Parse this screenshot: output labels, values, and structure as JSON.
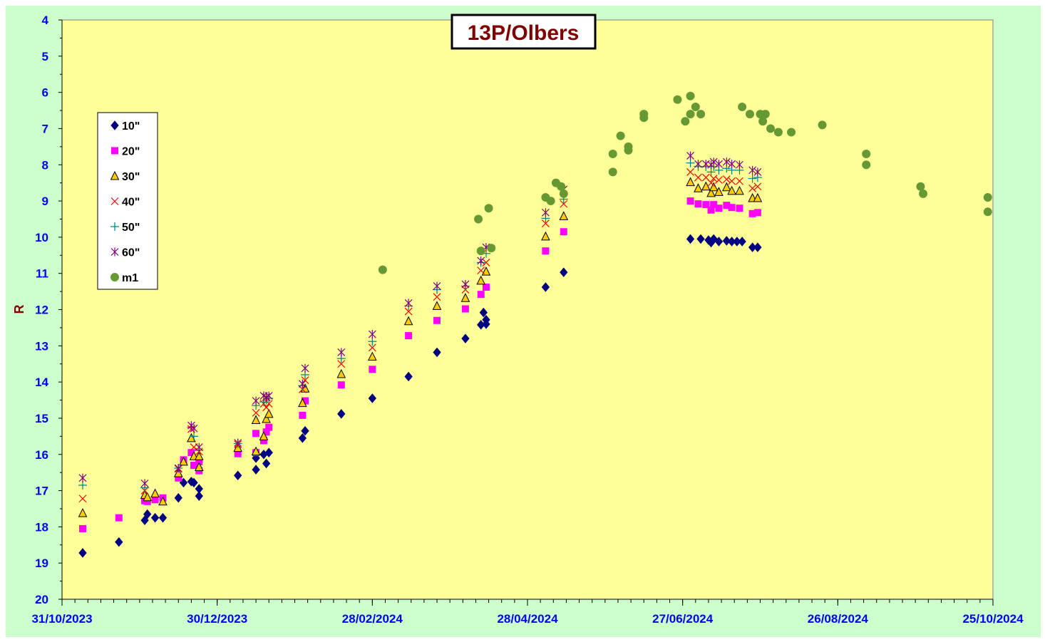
{
  "chart_data": {
    "type": "scatter",
    "title": "13P/Olbers",
    "ylabel": "R",
    "xlabel": "",
    "y_inverted": true,
    "ylim": [
      20,
      4
    ],
    "y_ticks": [
      "4",
      "5",
      "6",
      "7",
      "8",
      "9",
      "10",
      "11",
      "12",
      "13",
      "14",
      "15",
      "16",
      "17",
      "18",
      "19",
      "20"
    ],
    "x_ticks": [
      "31/10/2023",
      "30/12/2023",
      "28/02/2024",
      "28/04/2024",
      "27/06/2024",
      "26/08/2024",
      "25/10/2024"
    ],
    "xlim": [
      "31/10/2023",
      "25/10/2024"
    ],
    "grid": false,
    "legend_placement": "upper-left",
    "background_color": "#ffff99",
    "outer_color": "#ccffcc",
    "series": [
      {
        "name": "10\"",
        "marker": "diamond",
        "color": "#000080",
        "points": [
          [
            "2023-11-08",
            18.72
          ],
          [
            "2023-11-22",
            18.42
          ],
          [
            "2023-12-02",
            17.82
          ],
          [
            "2023-12-03",
            17.65
          ],
          [
            "2023-12-06",
            17.75
          ],
          [
            "2023-12-09",
            17.75
          ],
          [
            "2023-12-15",
            17.2
          ],
          [
            "2023-12-17",
            16.78
          ],
          [
            "2023-12-20",
            16.75
          ],
          [
            "2023-12-21",
            16.78
          ],
          [
            "2023-12-23",
            16.95
          ],
          [
            "2023-12-23",
            17.15
          ],
          [
            "2024-01-07",
            16.58
          ],
          [
            "2024-01-14",
            16.42
          ],
          [
            "2024-01-14",
            16.1
          ],
          [
            "2024-01-17",
            16.0
          ],
          [
            "2024-01-18",
            16.25
          ],
          [
            "2024-01-19",
            15.95
          ],
          [
            "2024-02-01",
            15.55
          ],
          [
            "2024-02-02",
            15.35
          ],
          [
            "2024-02-16",
            14.88
          ],
          [
            "2024-02-28",
            14.45
          ],
          [
            "2024-03-13",
            13.85
          ],
          [
            "2024-03-24",
            13.18
          ],
          [
            "2024-04-04",
            12.8
          ],
          [
            "2024-04-10",
            12.42
          ],
          [
            "2024-04-11",
            12.08
          ],
          [
            "2024-04-12",
            12.28
          ],
          [
            "2024-04-12",
            12.4
          ],
          [
            "2024-05-05",
            11.38
          ],
          [
            "2024-05-12",
            10.97
          ],
          [
            "2024-06-30",
            10.05
          ],
          [
            "2024-07-04",
            10.05
          ],
          [
            "2024-07-07",
            10.08
          ],
          [
            "2024-07-08",
            10.15
          ],
          [
            "2024-07-09",
            10.05
          ],
          [
            "2024-07-11",
            10.12
          ],
          [
            "2024-07-14",
            10.1
          ],
          [
            "2024-07-16",
            10.12
          ],
          [
            "2024-07-18",
            10.12
          ],
          [
            "2024-07-20",
            10.12
          ],
          [
            "2024-07-24",
            10.28
          ],
          [
            "2024-07-26",
            10.28
          ]
        ]
      },
      {
        "name": "20\"",
        "marker": "square",
        "color": "#ff00ff",
        "points": [
          [
            "2023-11-08",
            18.05
          ],
          [
            "2023-11-22",
            17.75
          ],
          [
            "2023-12-02",
            17.28
          ],
          [
            "2023-12-03",
            17.3
          ],
          [
            "2023-12-06",
            17.25
          ],
          [
            "2023-12-09",
            17.2
          ],
          [
            "2023-12-15",
            16.65
          ],
          [
            "2023-12-17",
            16.15
          ],
          [
            "2023-12-20",
            15.95
          ],
          [
            "2023-12-21",
            16.3
          ],
          [
            "2023-12-23",
            16.45
          ],
          [
            "2023-12-23",
            16.2
          ],
          [
            "2024-01-07",
            15.98
          ],
          [
            "2024-01-14",
            15.95
          ],
          [
            "2024-01-14",
            15.42
          ],
          [
            "2024-01-17",
            15.62
          ],
          [
            "2024-01-18",
            15.38
          ],
          [
            "2024-01-19",
            15.25
          ],
          [
            "2024-02-01",
            14.92
          ],
          [
            "2024-02-02",
            14.52
          ],
          [
            "2024-02-16",
            14.08
          ],
          [
            "2024-02-28",
            13.65
          ],
          [
            "2024-03-13",
            12.72
          ],
          [
            "2024-03-24",
            12.3
          ],
          [
            "2024-04-04",
            11.98
          ],
          [
            "2024-04-10",
            11.58
          ],
          [
            "2024-04-12",
            11.38
          ],
          [
            "2024-05-05",
            10.38
          ],
          [
            "2024-05-12",
            9.85
          ],
          [
            "2024-06-30",
            9.0
          ],
          [
            "2024-07-03",
            9.08
          ],
          [
            "2024-07-06",
            9.1
          ],
          [
            "2024-07-08",
            9.25
          ],
          [
            "2024-07-09",
            9.1
          ],
          [
            "2024-07-11",
            9.2
          ],
          [
            "2024-07-14",
            9.12
          ],
          [
            "2024-07-16",
            9.18
          ],
          [
            "2024-07-19",
            9.2
          ],
          [
            "2024-07-24",
            9.35
          ],
          [
            "2024-07-26",
            9.32
          ]
        ]
      },
      {
        "name": "30\"",
        "marker": "triangle",
        "color": "#ffcc00",
        "points": [
          [
            "2023-11-08",
            17.62
          ],
          [
            "2023-12-02",
            17.12
          ],
          [
            "2023-12-03",
            17.18
          ],
          [
            "2023-12-06",
            17.08
          ],
          [
            "2023-12-09",
            17.3
          ],
          [
            "2023-12-15",
            16.52
          ],
          [
            "2023-12-17",
            16.2
          ],
          [
            "2023-12-20",
            15.55
          ],
          [
            "2023-12-21",
            16.05
          ],
          [
            "2023-12-23",
            16.35
          ],
          [
            "2023-12-23",
            16.05
          ],
          [
            "2024-01-07",
            15.82
          ],
          [
            "2024-01-14",
            15.92
          ],
          [
            "2024-01-14",
            15.05
          ],
          [
            "2024-01-17",
            15.5
          ],
          [
            "2024-01-18",
            15.02
          ],
          [
            "2024-01-19",
            14.88
          ],
          [
            "2024-02-01",
            14.58
          ],
          [
            "2024-02-02",
            14.18
          ],
          [
            "2024-02-16",
            13.78
          ],
          [
            "2024-02-28",
            13.3
          ],
          [
            "2024-03-13",
            12.32
          ],
          [
            "2024-03-24",
            11.9
          ],
          [
            "2024-04-04",
            11.68
          ],
          [
            "2024-04-10",
            11.2
          ],
          [
            "2024-04-12",
            10.95
          ],
          [
            "2024-05-05",
            9.98
          ],
          [
            "2024-05-12",
            9.42
          ],
          [
            "2024-06-30",
            8.48
          ],
          [
            "2024-07-03",
            8.65
          ],
          [
            "2024-07-06",
            8.6
          ],
          [
            "2024-07-08",
            8.78
          ],
          [
            "2024-07-09",
            8.62
          ],
          [
            "2024-07-11",
            8.75
          ],
          [
            "2024-07-14",
            8.62
          ],
          [
            "2024-07-16",
            8.72
          ],
          [
            "2024-07-19",
            8.72
          ],
          [
            "2024-07-24",
            8.92
          ],
          [
            "2024-07-26",
            8.92
          ]
        ]
      },
      {
        "name": "40\"",
        "marker": "x",
        "color": "#ff0000",
        "points": [
          [
            "2023-11-08",
            17.22
          ],
          [
            "2023-12-02",
            17.0
          ],
          [
            "2023-12-15",
            16.4
          ],
          [
            "2023-12-20",
            15.3
          ],
          [
            "2023-12-21",
            15.8
          ],
          [
            "2023-12-23",
            15.92
          ],
          [
            "2024-01-07",
            15.72
          ],
          [
            "2024-01-14",
            14.85
          ],
          [
            "2024-01-17",
            14.6
          ],
          [
            "2024-01-18",
            14.7
          ],
          [
            "2024-01-19",
            14.6
          ],
          [
            "2024-02-01",
            14.2
          ],
          [
            "2024-02-02",
            13.95
          ],
          [
            "2024-02-16",
            13.5
          ],
          [
            "2024-02-28",
            13.05
          ],
          [
            "2024-03-13",
            12.05
          ],
          [
            "2024-03-24",
            11.65
          ],
          [
            "2024-04-04",
            11.45
          ],
          [
            "2024-04-10",
            10.92
          ],
          [
            "2024-04-12",
            10.7
          ],
          [
            "2024-05-05",
            9.62
          ],
          [
            "2024-05-12",
            9.08
          ],
          [
            "2024-06-30",
            8.2
          ],
          [
            "2024-07-03",
            8.35
          ],
          [
            "2024-07-06",
            8.35
          ],
          [
            "2024-07-08",
            8.5
          ],
          [
            "2024-07-09",
            8.38
          ],
          [
            "2024-07-11",
            8.42
          ],
          [
            "2024-07-14",
            8.4
          ],
          [
            "2024-07-16",
            8.45
          ],
          [
            "2024-07-19",
            8.45
          ],
          [
            "2024-07-24",
            8.65
          ],
          [
            "2024-07-26",
            8.6
          ]
        ]
      },
      {
        "name": "50\"",
        "marker": "plus",
        "color": "#008080",
        "points": [
          [
            "2023-11-08",
            16.85
          ],
          [
            "2023-12-02",
            16.92
          ],
          [
            "2023-12-15",
            16.38
          ],
          [
            "2023-12-20",
            15.25
          ],
          [
            "2023-12-21",
            15.5
          ],
          [
            "2023-12-23",
            15.88
          ],
          [
            "2024-01-07",
            15.7
          ],
          [
            "2024-01-14",
            14.65
          ],
          [
            "2024-01-17",
            14.55
          ],
          [
            "2024-01-18",
            14.5
          ],
          [
            "2024-01-19",
            14.45
          ],
          [
            "2024-02-01",
            14.1
          ],
          [
            "2024-02-02",
            13.8
          ],
          [
            "2024-02-16",
            13.35
          ],
          [
            "2024-02-28",
            12.88
          ],
          [
            "2024-03-13",
            11.9
          ],
          [
            "2024-03-24",
            11.45
          ],
          [
            "2024-04-04",
            11.35
          ],
          [
            "2024-04-10",
            10.7
          ],
          [
            "2024-04-12",
            10.45
          ],
          [
            "2024-05-05",
            9.48
          ],
          [
            "2024-05-12",
            8.95
          ],
          [
            "2024-06-30",
            7.95
          ],
          [
            "2024-07-03",
            8.05
          ],
          [
            "2024-07-06",
            8.05
          ],
          [
            "2024-07-08",
            8.2
          ],
          [
            "2024-07-09",
            8.05
          ],
          [
            "2024-07-11",
            8.15
          ],
          [
            "2024-07-14",
            8.1
          ],
          [
            "2024-07-16",
            8.15
          ],
          [
            "2024-07-19",
            8.15
          ],
          [
            "2024-07-24",
            8.38
          ],
          [
            "2024-07-26",
            8.35
          ]
        ]
      },
      {
        "name": "60\"",
        "marker": "star",
        "color": "#800080",
        "points": [
          [
            "2023-11-08",
            16.65
          ],
          [
            "2023-12-02",
            16.8
          ],
          [
            "2023-12-15",
            16.38
          ],
          [
            "2023-12-20",
            15.2
          ],
          [
            "2023-12-21",
            15.28
          ],
          [
            "2023-12-23",
            15.8
          ],
          [
            "2024-01-07",
            15.68
          ],
          [
            "2024-01-14",
            14.52
          ],
          [
            "2024-01-17",
            14.38
          ],
          [
            "2024-01-18",
            14.42
          ],
          [
            "2024-01-19",
            14.38
          ],
          [
            "2024-02-01",
            14.05
          ],
          [
            "2024-02-02",
            13.62
          ],
          [
            "2024-02-16",
            13.18
          ],
          [
            "2024-02-28",
            12.68
          ],
          [
            "2024-03-13",
            11.82
          ],
          [
            "2024-03-24",
            11.35
          ],
          [
            "2024-04-04",
            11.3
          ],
          [
            "2024-04-10",
            10.65
          ],
          [
            "2024-04-12",
            10.28
          ],
          [
            "2024-05-05",
            9.32
          ],
          [
            "2024-05-12",
            8.68
          ],
          [
            "2024-06-30",
            7.75
          ],
          [
            "2024-07-03",
            7.98
          ],
          [
            "2024-07-06",
            7.98
          ],
          [
            "2024-07-08",
            8.0
          ],
          [
            "2024-07-09",
            7.92
          ],
          [
            "2024-07-11",
            7.98
          ],
          [
            "2024-07-14",
            7.92
          ],
          [
            "2024-07-16",
            7.98
          ],
          [
            "2024-07-19",
            8.0
          ],
          [
            "2024-07-24",
            8.15
          ],
          [
            "2024-07-26",
            8.2
          ]
        ]
      },
      {
        "name": "m1",
        "marker": "circle",
        "color": "#669933",
        "points": [
          [
            "2024-03-03",
            10.9
          ],
          [
            "2024-04-09",
            9.5
          ],
          [
            "2024-04-10",
            10.38
          ],
          [
            "2024-04-13",
            9.2
          ],
          [
            "2024-04-14",
            10.3
          ],
          [
            "2024-05-05",
            8.9
          ],
          [
            "2024-05-07",
            9.0
          ],
          [
            "2024-05-09",
            8.5
          ],
          [
            "2024-05-11",
            8.6
          ],
          [
            "2024-05-12",
            8.8
          ],
          [
            "2024-05-31",
            8.2
          ],
          [
            "2024-05-31",
            7.7
          ],
          [
            "2024-06-03",
            7.2
          ],
          [
            "2024-06-06",
            7.6
          ],
          [
            "2024-06-06",
            7.5
          ],
          [
            "2024-06-12",
            6.6
          ],
          [
            "2024-06-12",
            6.7
          ],
          [
            "2024-06-25",
            6.2
          ],
          [
            "2024-06-28",
            6.8
          ],
          [
            "2024-06-30",
            6.6
          ],
          [
            "2024-06-30",
            6.1
          ],
          [
            "2024-07-02",
            6.4
          ],
          [
            "2024-07-04",
            6.6
          ],
          [
            "2024-07-20",
            6.4
          ],
          [
            "2024-07-23",
            6.6
          ],
          [
            "2024-07-27",
            6.6
          ],
          [
            "2024-07-28",
            6.8
          ],
          [
            "2024-07-29",
            6.6
          ],
          [
            "2024-07-31",
            7.0
          ],
          [
            "2024-08-03",
            7.1
          ],
          [
            "2024-08-08",
            7.1
          ],
          [
            "2024-08-20",
            6.9
          ],
          [
            "2024-09-06",
            7.7
          ],
          [
            "2024-09-06",
            8.0
          ],
          [
            "2024-09-27",
            8.6
          ],
          [
            "2024-09-28",
            8.8
          ],
          [
            "2024-10-23",
            8.9
          ],
          [
            "2024-10-23",
            9.3
          ]
        ]
      }
    ]
  }
}
